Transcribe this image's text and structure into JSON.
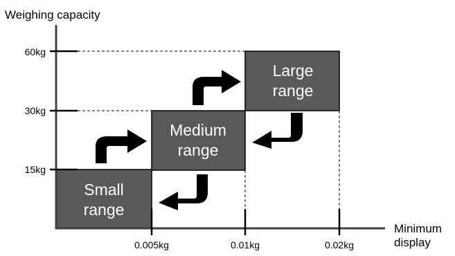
{
  "y_axis": {
    "title": "Weighing capacity",
    "ticks": [
      "15kg",
      "30kg",
      "60kg"
    ]
  },
  "x_axis": {
    "title_lines": [
      "Minimum",
      "display"
    ],
    "ticks": [
      "0.005kg",
      "0.01kg",
      "0.02kg"
    ]
  },
  "ranges": [
    {
      "lines": [
        "Small",
        "range"
      ]
    },
    {
      "lines": [
        "Medium",
        "range"
      ]
    },
    {
      "lines": [
        "Large",
        "range"
      ]
    }
  ],
  "colors": {
    "box_fill": "#595959",
    "box_text": "#ffffff",
    "axis": "#404040",
    "arrow": "#000000"
  },
  "arrows": [
    {
      "name": "arrow-small-to-medium-icon",
      "direction": "up-right"
    },
    {
      "name": "arrow-medium-to-large-icon",
      "direction": "up-right"
    },
    {
      "name": "arrow-large-to-medium-icon",
      "direction": "down-left"
    },
    {
      "name": "arrow-medium-to-small-icon",
      "direction": "down-left"
    }
  ]
}
